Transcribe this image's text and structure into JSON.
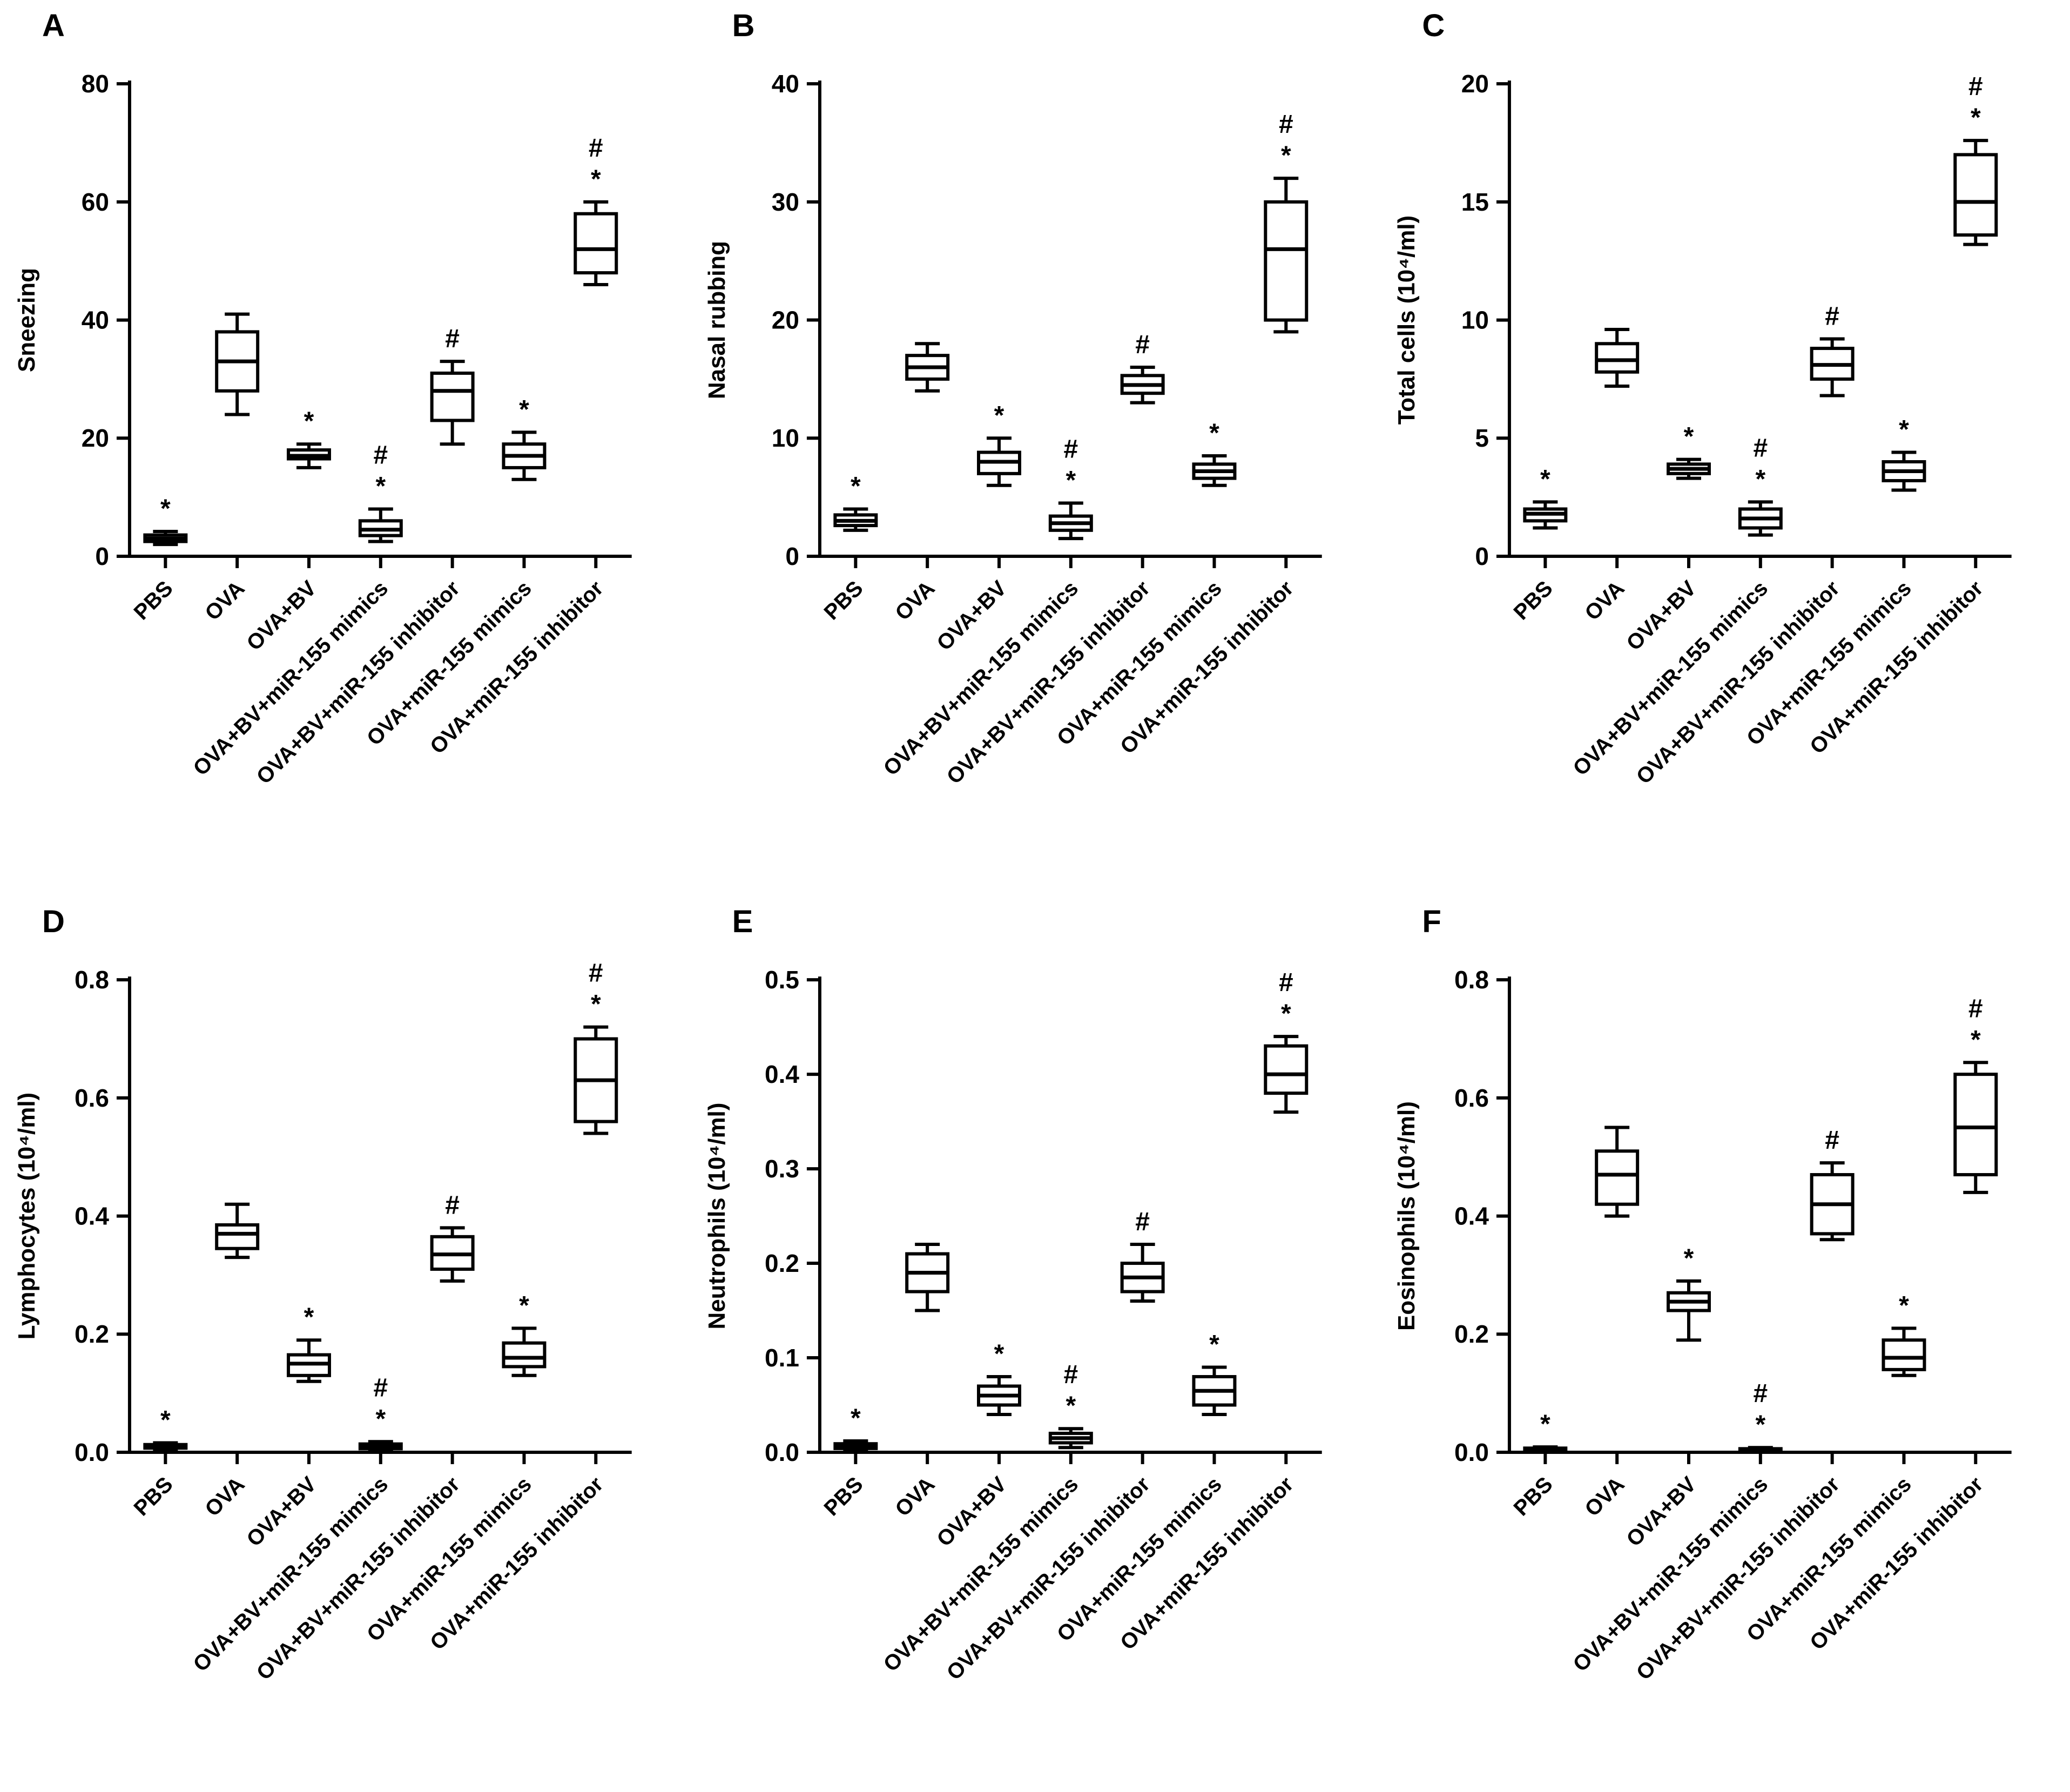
{
  "figure": {
    "background": "#ffffff",
    "ink": "#000000",
    "box_fill": "#ffffff",
    "significance_symbols": [
      "*",
      "#"
    ]
  },
  "chart_data": [
    {
      "type": "box",
      "panel": "A",
      "ylabel": "Sneezing",
      "ylim": [
        0,
        80
      ],
      "yticks": [
        0,
        20,
        40,
        60,
        80
      ],
      "ytick_labels": [
        "0",
        "20",
        "40",
        "60",
        "80"
      ],
      "categories": [
        "PBS",
        "OVA",
        "OVA+BV",
        "OVA+BV+miR-155 mimics",
        "OVA+BV+miR-155 inhibitor",
        "OVA+miR-155 mimics",
        "OVA+miR-155 inhibitor"
      ],
      "boxes": [
        {
          "lo": 2,
          "q1": 2.5,
          "med": 3,
          "q3": 3.6,
          "hi": 4.2,
          "marks": [
            "*"
          ]
        },
        {
          "lo": 24,
          "q1": 28,
          "med": 33,
          "q3": 38,
          "hi": 41,
          "marks": []
        },
        {
          "lo": 15,
          "q1": 16.5,
          "med": 17,
          "q3": 18,
          "hi": 19,
          "marks": [
            "*"
          ]
        },
        {
          "lo": 2.5,
          "q1": 3.5,
          "med": 4.5,
          "q3": 6,
          "hi": 8,
          "marks": [
            "#",
            "*"
          ]
        },
        {
          "lo": 19,
          "q1": 23,
          "med": 28,
          "q3": 31,
          "hi": 33,
          "marks": [
            "#"
          ]
        },
        {
          "lo": 13,
          "q1": 15,
          "med": 17,
          "q3": 19,
          "hi": 21,
          "marks": [
            "*"
          ]
        },
        {
          "lo": 46,
          "q1": 48,
          "med": 52,
          "q3": 58,
          "hi": 60,
          "marks": [
            "#",
            "*"
          ]
        }
      ]
    },
    {
      "type": "box",
      "panel": "B",
      "ylabel": "Nasal rubbing",
      "ylim": [
        0,
        40
      ],
      "yticks": [
        0,
        10,
        20,
        30,
        40
      ],
      "ytick_labels": [
        "0",
        "10",
        "20",
        "30",
        "40"
      ],
      "categories": [
        "PBS",
        "OVA",
        "OVA+BV",
        "OVA+BV+miR-155 mimics",
        "OVA+BV+miR-155 inhibitor",
        "OVA+miR-155 mimics",
        "OVA+miR-155 inhibitor"
      ],
      "boxes": [
        {
          "lo": 2.2,
          "q1": 2.6,
          "med": 3,
          "q3": 3.5,
          "hi": 4,
          "marks": [
            "*"
          ]
        },
        {
          "lo": 14,
          "q1": 15,
          "med": 16,
          "q3": 17,
          "hi": 18,
          "marks": []
        },
        {
          "lo": 6,
          "q1": 7,
          "med": 8,
          "q3": 8.8,
          "hi": 10,
          "marks": [
            "*"
          ]
        },
        {
          "lo": 1.5,
          "q1": 2.2,
          "med": 2.8,
          "q3": 3.4,
          "hi": 4.5,
          "marks": [
            "#",
            "*"
          ]
        },
        {
          "lo": 13,
          "q1": 13.8,
          "med": 14.5,
          "q3": 15.3,
          "hi": 16,
          "marks": [
            "#"
          ]
        },
        {
          "lo": 6,
          "q1": 6.6,
          "med": 7.2,
          "q3": 7.8,
          "hi": 8.5,
          "marks": [
            "*"
          ]
        },
        {
          "lo": 19,
          "q1": 20,
          "med": 26,
          "q3": 30,
          "hi": 32,
          "marks": [
            "#",
            "*"
          ]
        }
      ]
    },
    {
      "type": "box",
      "panel": "C",
      "ylabel": "Total cells (10⁴/ml)",
      "ylim": [
        0,
        20
      ],
      "yticks": [
        0,
        5,
        10,
        15,
        20
      ],
      "ytick_labels": [
        "0",
        "5",
        "10",
        "15",
        "20"
      ],
      "categories": [
        "PBS",
        "OVA",
        "OVA+BV",
        "OVA+BV+miR-155 mimics",
        "OVA+BV+miR-155 inhibitor",
        "OVA+miR-155 mimics",
        "OVA+miR-155 inhibitor"
      ],
      "boxes": [
        {
          "lo": 1.2,
          "q1": 1.5,
          "med": 1.8,
          "q3": 2.0,
          "hi": 2.3,
          "marks": [
            "*"
          ]
        },
        {
          "lo": 7.2,
          "q1": 7.8,
          "med": 8.3,
          "q3": 9.0,
          "hi": 9.6,
          "marks": []
        },
        {
          "lo": 3.3,
          "q1": 3.5,
          "med": 3.7,
          "q3": 3.9,
          "hi": 4.1,
          "marks": [
            "*"
          ]
        },
        {
          "lo": 0.9,
          "q1": 1.2,
          "med": 1.6,
          "q3": 2.0,
          "hi": 2.3,
          "marks": [
            "#",
            "*"
          ]
        },
        {
          "lo": 6.8,
          "q1": 7.5,
          "med": 8.1,
          "q3": 8.8,
          "hi": 9.2,
          "marks": [
            "#"
          ]
        },
        {
          "lo": 2.8,
          "q1": 3.2,
          "med": 3.6,
          "q3": 4.0,
          "hi": 4.4,
          "marks": [
            "*"
          ]
        },
        {
          "lo": 13.2,
          "q1": 13.6,
          "med": 15.0,
          "q3": 17.0,
          "hi": 17.6,
          "marks": [
            "#",
            "*"
          ]
        }
      ]
    },
    {
      "type": "box",
      "panel": "D",
      "ylabel": "Lymphocytes (10⁴/ml)",
      "ylim": [
        0,
        0.8
      ],
      "yticks": [
        0,
        0.2,
        0.4,
        0.6,
        0.8
      ],
      "ytick_labels": [
        "0.0",
        "0.2",
        "0.4",
        "0.6",
        "0.8"
      ],
      "categories": [
        "PBS",
        "OVA",
        "OVA+BV",
        "OVA+BV+miR-155 mimics",
        "OVA+BV+miR-155 inhibitor",
        "OVA+miR-155 mimics",
        "OVA+miR-155 inhibitor"
      ],
      "boxes": [
        {
          "lo": 0.004,
          "q1": 0.007,
          "med": 0.01,
          "q3": 0.013,
          "hi": 0.016,
          "marks": [
            "*"
          ]
        },
        {
          "lo": 0.33,
          "q1": 0.345,
          "med": 0.37,
          "q3": 0.385,
          "hi": 0.42,
          "marks": []
        },
        {
          "lo": 0.12,
          "q1": 0.13,
          "med": 0.15,
          "q3": 0.165,
          "hi": 0.19,
          "marks": [
            "*"
          ]
        },
        {
          "lo": 0.004,
          "q1": 0.006,
          "med": 0.01,
          "q3": 0.014,
          "hi": 0.018,
          "marks": [
            "#",
            "*"
          ]
        },
        {
          "lo": 0.29,
          "q1": 0.31,
          "med": 0.335,
          "q3": 0.365,
          "hi": 0.38,
          "marks": [
            "#"
          ]
        },
        {
          "lo": 0.13,
          "q1": 0.145,
          "med": 0.16,
          "q3": 0.185,
          "hi": 0.21,
          "marks": [
            "*"
          ]
        },
        {
          "lo": 0.54,
          "q1": 0.56,
          "med": 0.63,
          "q3": 0.7,
          "hi": 0.72,
          "marks": [
            "#",
            "*"
          ]
        }
      ]
    },
    {
      "type": "box",
      "panel": "E",
      "ylabel": "Neutrophils (10⁴/ml)",
      "ylim": [
        0,
        0.5
      ],
      "yticks": [
        0,
        0.1,
        0.2,
        0.3,
        0.4,
        0.5
      ],
      "ytick_labels": [
        "0.0",
        "0.1",
        "0.2",
        "0.3",
        "0.4",
        "0.5"
      ],
      "categories": [
        "PBS",
        "OVA",
        "OVA+BV",
        "OVA+BV+miR-155 mimics",
        "OVA+BV+miR-155 inhibitor",
        "OVA+miR-155 mimics",
        "OVA+miR-155 inhibitor"
      ],
      "boxes": [
        {
          "lo": 0.002,
          "q1": 0.004,
          "med": 0.006,
          "q3": 0.009,
          "hi": 0.012,
          "marks": [
            "*"
          ]
        },
        {
          "lo": 0.15,
          "q1": 0.17,
          "med": 0.19,
          "q3": 0.21,
          "hi": 0.22,
          "marks": []
        },
        {
          "lo": 0.04,
          "q1": 0.05,
          "med": 0.06,
          "q3": 0.07,
          "hi": 0.08,
          "marks": [
            "*"
          ]
        },
        {
          "lo": 0.005,
          "q1": 0.01,
          "med": 0.015,
          "q3": 0.02,
          "hi": 0.025,
          "marks": [
            "#",
            "*"
          ]
        },
        {
          "lo": 0.16,
          "q1": 0.17,
          "med": 0.185,
          "q3": 0.2,
          "hi": 0.22,
          "marks": [
            "#"
          ]
        },
        {
          "lo": 0.04,
          "q1": 0.05,
          "med": 0.065,
          "q3": 0.08,
          "hi": 0.09,
          "marks": [
            "*"
          ]
        },
        {
          "lo": 0.36,
          "q1": 0.38,
          "med": 0.4,
          "q3": 0.43,
          "hi": 0.44,
          "marks": [
            "#",
            "*"
          ]
        }
      ]
    },
    {
      "type": "box",
      "panel": "F",
      "ylabel": "Eosinophils (10⁴/ml)",
      "ylim": [
        0,
        0.8
      ],
      "yticks": [
        0,
        0.2,
        0.4,
        0.6,
        0.8
      ],
      "ytick_labels": [
        "0.0",
        "0.2",
        "0.4",
        "0.6",
        "0.8"
      ],
      "categories": [
        "PBS",
        "OVA",
        "OVA+BV",
        "OVA+BV+miR-155 mimics",
        "OVA+BV+miR-155 inhibitor",
        "OVA+miR-155 mimics",
        "OVA+miR-155 inhibitor"
      ],
      "boxes": [
        {
          "lo": 0.002,
          "q1": 0.003,
          "med": 0.005,
          "q3": 0.007,
          "hi": 0.009,
          "marks": [
            "*"
          ]
        },
        {
          "lo": 0.4,
          "q1": 0.42,
          "med": 0.47,
          "q3": 0.51,
          "hi": 0.55,
          "marks": []
        },
        {
          "lo": 0.19,
          "q1": 0.24,
          "med": 0.255,
          "q3": 0.27,
          "hi": 0.29,
          "marks": [
            "*"
          ]
        },
        {
          "lo": 0.001,
          "q1": 0.002,
          "med": 0.004,
          "q3": 0.006,
          "hi": 0.008,
          "marks": [
            "#",
            "*"
          ]
        },
        {
          "lo": 0.36,
          "q1": 0.37,
          "med": 0.42,
          "q3": 0.47,
          "hi": 0.49,
          "marks": [
            "#"
          ]
        },
        {
          "lo": 0.13,
          "q1": 0.14,
          "med": 0.16,
          "q3": 0.19,
          "hi": 0.21,
          "marks": [
            "*"
          ]
        },
        {
          "lo": 0.44,
          "q1": 0.47,
          "med": 0.55,
          "q3": 0.64,
          "hi": 0.66,
          "marks": [
            "#",
            "*"
          ]
        }
      ]
    }
  ]
}
